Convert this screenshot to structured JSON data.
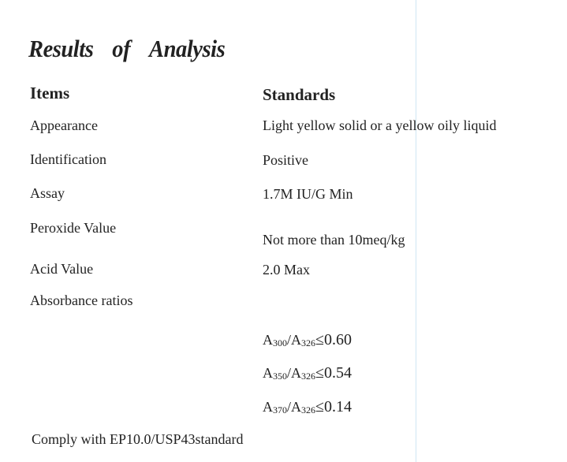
{
  "title": {
    "word1": "Results",
    "word2": "of",
    "word3": "Analysis"
  },
  "headers": {
    "items": "Items",
    "standards": "Standards"
  },
  "rows": [
    {
      "item": "Appearance",
      "standard": "Light yellow solid or a yellow oily liquid"
    },
    {
      "item": "Identification",
      "standard": "Positive"
    },
    {
      "item": "Assay",
      "standard": "1.7M IU/G Min"
    },
    {
      "item": "Peroxide Value",
      "standard": "Not more than 10meq/kg"
    },
    {
      "item": "Acid Value",
      "standard": "2.0 Max"
    },
    {
      "item": "Absorbance ratios",
      "standard": ""
    }
  ],
  "ratios": [
    {
      "a": "A",
      "sub1": "300",
      "slash": "/A",
      "sub2": "326",
      "rel": "≤0.60"
    },
    {
      "a": "A",
      "sub1": "350",
      "slash": "/A",
      "sub2": "326",
      "rel": "≤0.54"
    },
    {
      "a": "A",
      "sub1": "370",
      "slash": "/A",
      "sub2": "326",
      "rel": "≤0.14"
    }
  ],
  "footer": "Comply with EP10.0/USP43standard",
  "colors": {
    "text": "#222222",
    "guide_line": "#cfe6f3"
  }
}
